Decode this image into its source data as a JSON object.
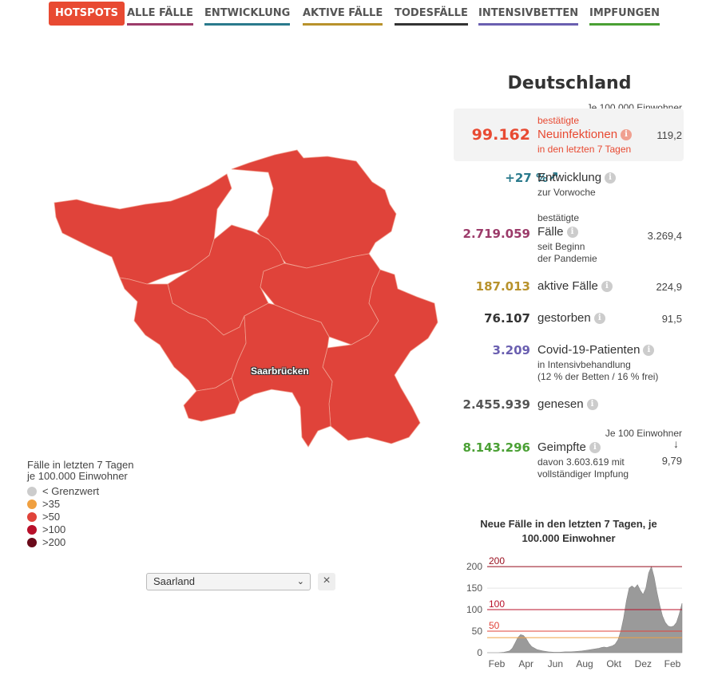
{
  "nav": {
    "tabs": [
      {
        "label": "HOTSPOTS",
        "color": "#e84a32",
        "active": true
      },
      {
        "label": "ALLE FÄLLE",
        "color": "#9c3b6a"
      },
      {
        "label": "ENTWICKLUNG",
        "color": "#2a7a8c"
      },
      {
        "label": "AKTIVE FÄLLE",
        "color": "#b8922c"
      },
      {
        "label": "TODESFÄLLE",
        "color": "#333333"
      },
      {
        "label": "INTENSIVBETTEN",
        "color": "#6a5fb0"
      },
      {
        "label": "IMPFUNGEN",
        "color": "#4aa034"
      }
    ]
  },
  "map": {
    "label": "Saarbrücken",
    "fill_color": "#e0433a",
    "border_color": "#f0a090"
  },
  "legend": {
    "title": "Fälle in letzten 7 Tagen je 100.000 Einwohner",
    "items": [
      {
        "label": "< Grenzwert",
        "color": "#cccccc"
      },
      {
        "label": ">35",
        "color": "#f0a040"
      },
      {
        "label": ">50",
        "color": "#e0433a"
      },
      {
        "label": ">100",
        "color": "#b8102a"
      },
      {
        "label": ">200",
        "color": "#6a0a1a"
      }
    ]
  },
  "region_select": {
    "value": "Saarland",
    "clear_symbol": "×"
  },
  "stats": {
    "title": "Deutschland",
    "per_100k_header": "Je 100.000 Einwohner",
    "per_100_header": "Je 100 Einwohner",
    "info_symbol": "i",
    "arrow_symbol": "↓",
    "rows": {
      "neuinfektionen": {
        "number": "99.162",
        "prefix": "bestätigte",
        "label": "Neuinfektionen",
        "suffix": "in den letzten 7 Tagen",
        "value": "119,2",
        "color": "#e84a32"
      },
      "entwicklung": {
        "number": "+27 %",
        "arrow": "↗",
        "label": "Entwicklung",
        "sub": "zur Vorwoche",
        "color": "#2a7a8c"
      },
      "faelle": {
        "number": "2.719.059",
        "prefix": "bestätigte",
        "label": "Fälle",
        "sub1": "seit Beginn",
        "sub2": "der Pandemie",
        "value": "3.269,4",
        "color": "#9c3b6a"
      },
      "aktive": {
        "number": "187.013",
        "label": "aktive Fälle",
        "value": "224,9",
        "color": "#b8922c"
      },
      "gestorben": {
        "number": "76.107",
        "label": "gestorben",
        "value": "91,5",
        "color": "#333333"
      },
      "intensiv": {
        "number": "3.209",
        "label": "Covid-19-Patienten",
        "sub1": "in Intensivbehandlung",
        "sub2": "(12 % der Betten / 16 % frei)",
        "color": "#6a5fb0"
      },
      "genesen": {
        "number": "2.455.939",
        "label": "genesen",
        "color": "#555555"
      },
      "geimpfte": {
        "number": "8.143.296",
        "label": "Geimpfte",
        "sub1": "davon 3.603.619 mit",
        "sub2": "vollständiger Impfung",
        "value": "9,79",
        "color": "#4aa034"
      }
    }
  },
  "chart_data": {
    "type": "area",
    "title": "Neue Fälle in den letzten 7 Tagen, je 100.000 Einwohner",
    "x_tick_labels": [
      "Feb",
      "Apr",
      "Jun",
      "Aug",
      "Okt",
      "Dez",
      "Feb"
    ],
    "y_ticks": [
      0,
      50,
      100,
      150,
      200
    ],
    "ylim": [
      0,
      215
    ],
    "thresholds": [
      {
        "value": 200,
        "label": "200",
        "color": "#9a1020"
      },
      {
        "value": 100,
        "label": "100",
        "color": "#b8102a"
      },
      {
        "value": 50,
        "label": "50",
        "color": "#e0433a"
      },
      {
        "value": 35,
        "label": "",
        "color": "#f0a040"
      }
    ],
    "series": [
      {
        "x": [
          0,
          2,
          4,
          6,
          8,
          9,
          10,
          11,
          12,
          13,
          14,
          15,
          16,
          18,
          20,
          22,
          24,
          26,
          28,
          30,
          32,
          34,
          36,
          38,
          40,
          41,
          42,
          43,
          44,
          45,
          46,
          47,
          48,
          49,
          50,
          51,
          52,
          53,
          54,
          55,
          56,
          57,
          58,
          59,
          60,
          61,
          62,
          63,
          64,
          65,
          66,
          67,
          68,
          69,
          70
        ],
        "values": [
          0,
          0,
          0,
          1,
          4,
          10,
          22,
          35,
          42,
          40,
          33,
          22,
          14,
          7,
          4,
          2,
          1,
          1,
          2,
          2,
          3,
          4,
          6,
          8,
          10,
          12,
          13,
          12,
          14,
          16,
          20,
          30,
          50,
          80,
          120,
          150,
          155,
          150,
          158,
          145,
          135,
          150,
          185,
          200,
          175,
          140,
          110,
          85,
          70,
          62,
          60,
          62,
          70,
          90,
          115
        ]
      }
    ]
  }
}
